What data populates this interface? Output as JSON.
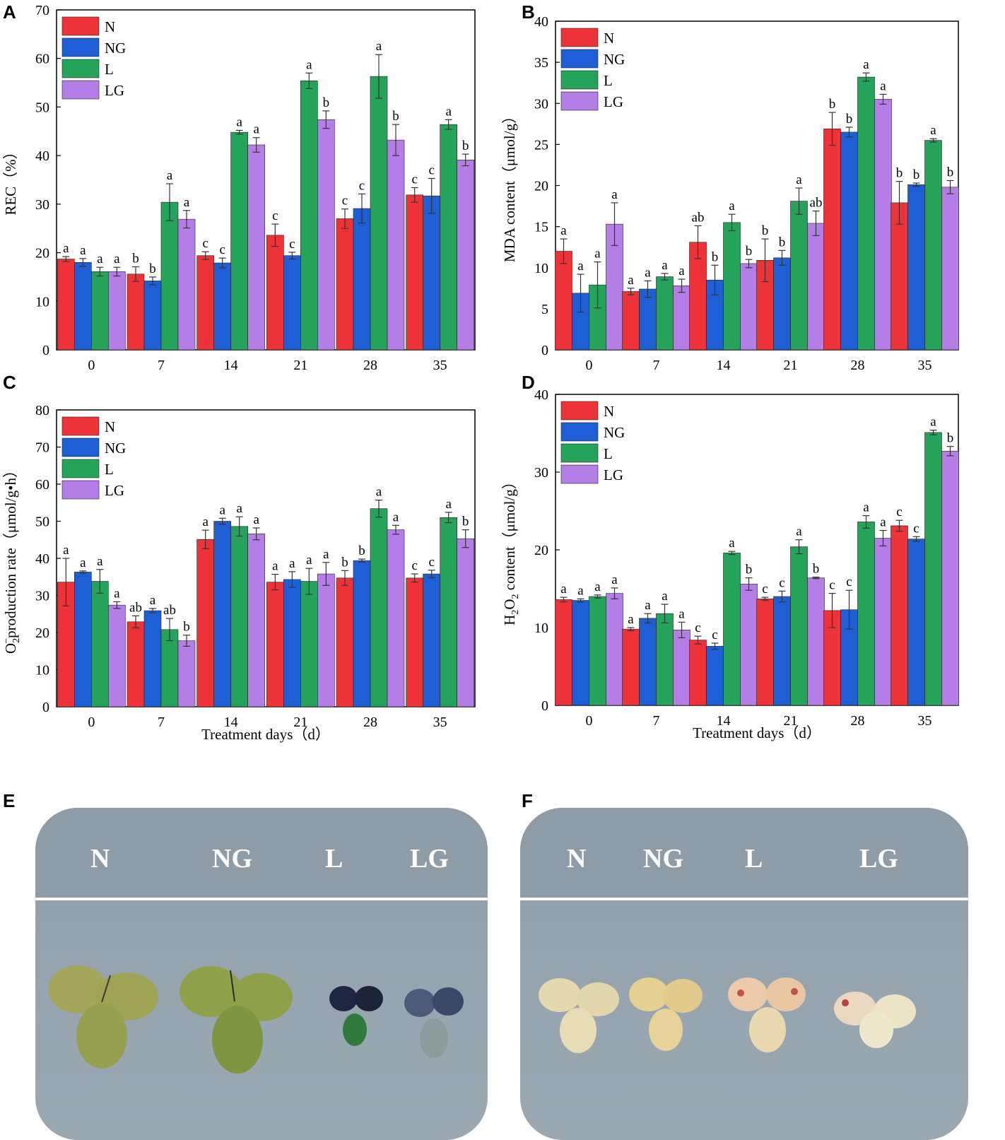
{
  "panels": {
    "A": "A",
    "B": "B",
    "C": "C",
    "D": "D",
    "E": "E",
    "F": "F"
  },
  "colors": {
    "N": "#ee3338",
    "NG": "#1f5fd6",
    "L": "#25a35a",
    "LG": "#b57ee6"
  },
  "chart_data": [
    {
      "id": "A",
      "type": "bar",
      "ylabel": "REC（%）",
      "xlabel": "",
      "ylim": [
        0,
        70
      ],
      "yticks": [
        0,
        10,
        20,
        30,
        40,
        50,
        60,
        70
      ],
      "categories": [
        "0",
        "7",
        "14",
        "21",
        "28",
        "35"
      ],
      "legend": {
        "position": "top-left",
        "entries": [
          "N",
          "NG",
          "L",
          "LG"
        ]
      },
      "series": [
        {
          "name": "N",
          "values": [
            18.7,
            15.6,
            19.4,
            23.6,
            27.0,
            31.9
          ],
          "errors": [
            0.5,
            1.5,
            0.8,
            2.3,
            2.0,
            1.5
          ],
          "labels": [
            "a",
            "b",
            "c",
            "c",
            "c",
            "c"
          ]
        },
        {
          "name": "NG",
          "values": [
            18.0,
            14.2,
            17.9,
            19.4,
            29.1,
            31.7
          ],
          "errors": [
            0.8,
            0.8,
            1.0,
            0.7,
            3.0,
            3.6
          ],
          "labels": [
            "a",
            "b",
            "c",
            "c",
            "c",
            "c"
          ]
        },
        {
          "name": "L",
          "values": [
            16.1,
            30.4,
            44.8,
            55.4,
            56.3,
            46.4
          ],
          "errors": [
            0.9,
            3.8,
            0.4,
            1.6,
            4.5,
            1.0
          ],
          "labels": [
            "a",
            "a",
            "a",
            "a",
            "a",
            "a"
          ]
        },
        {
          "name": "LG",
          "values": [
            16.1,
            26.9,
            42.2,
            47.4,
            43.2,
            39.1
          ],
          "errors": [
            0.9,
            1.8,
            1.5,
            1.8,
            3.2,
            1.2
          ],
          "labels": [
            "a",
            "a",
            "a",
            "b",
            "b",
            "b"
          ]
        }
      ]
    },
    {
      "id": "B",
      "type": "bar",
      "ylabel": "MDA content（μmol/g）",
      "xlabel": "",
      "ylim": [
        0,
        40
      ],
      "yticks": [
        0,
        5,
        10,
        15,
        20,
        25,
        30,
        35,
        40
      ],
      "categories": [
        "0",
        "7",
        "14",
        "21",
        "28",
        "35"
      ],
      "legend": {
        "position": "top-left",
        "entries": [
          "N",
          "NG",
          "L",
          "LG"
        ]
      },
      "series": [
        {
          "name": "N",
          "values": [
            12.0,
            7.1,
            13.1,
            10.9,
            26.9,
            17.9
          ],
          "errors": [
            1.5,
            0.4,
            2.0,
            2.6,
            2.0,
            2.6
          ],
          "labels": [
            "a",
            "a",
            "ab",
            "b",
            "b",
            "b"
          ]
        },
        {
          "name": "NG",
          "values": [
            6.9,
            7.4,
            8.5,
            11.2,
            26.5,
            20.1
          ],
          "errors": [
            2.3,
            1.0,
            1.8,
            0.9,
            0.6,
            0.2
          ],
          "labels": [
            "a",
            "a",
            "b",
            "b",
            "b",
            "b"
          ]
        },
        {
          "name": "L",
          "values": [
            7.9,
            8.9,
            15.5,
            18.1,
            33.2,
            25.5
          ],
          "errors": [
            2.8,
            0.4,
            1.0,
            1.6,
            0.5,
            0.2
          ],
          "labels": [
            "a",
            "a",
            "a",
            "a",
            "a",
            "a"
          ]
        },
        {
          "name": "LG",
          "values": [
            15.3,
            7.8,
            10.5,
            15.4,
            30.5,
            19.8
          ],
          "errors": [
            2.6,
            0.8,
            0.5,
            1.5,
            0.6,
            0.8
          ],
          "labels": [
            "a",
            "a",
            "b",
            "ab",
            "a",
            "b"
          ]
        }
      ]
    },
    {
      "id": "C",
      "type": "bar",
      "ylabel_main": "O",
      "ylabel_sub": "2",
      "ylabel_sup": "−",
      "ylabel_rest": "production rate（μmol/g•h）",
      "xlabel": "Treatment days（d）",
      "ylim": [
        0,
        80
      ],
      "yticks": [
        0,
        10,
        20,
        30,
        40,
        50,
        60,
        70,
        80
      ],
      "categories": [
        "0",
        "7",
        "14",
        "21",
        "28",
        "35"
      ],
      "legend": {
        "position": "top-left",
        "entries": [
          "N",
          "NG",
          "L",
          "LG"
        ]
      },
      "series": [
        {
          "name": "N",
          "values": [
            33.6,
            22.9,
            45.1,
            33.6,
            34.7,
            34.7
          ],
          "errors": [
            6.4,
            1.6,
            2.5,
            2.1,
            2.0,
            1.1
          ],
          "labels": [
            "a",
            "ab",
            "a",
            "a",
            "b",
            "c"
          ]
        },
        {
          "name": "NG",
          "values": [
            36.3,
            25.9,
            50.0,
            34.3,
            39.4,
            35.8
          ],
          "errors": [
            0.3,
            0.6,
            0.8,
            2.1,
            0.4,
            1.0
          ],
          "labels": [
            "a",
            "a",
            "a",
            "a",
            "b",
            "c"
          ]
        },
        {
          "name": "L",
          "values": [
            33.8,
            20.8,
            48.6,
            33.8,
            53.4,
            51.0
          ],
          "errors": [
            3.2,
            3.0,
            2.6,
            3.5,
            2.3,
            1.4
          ],
          "labels": [
            "a",
            "ab",
            "a",
            "a",
            "a",
            "a"
          ]
        },
        {
          "name": "LG",
          "values": [
            27.4,
            17.8,
            46.6,
            35.8,
            47.7,
            45.3
          ],
          "errors": [
            0.9,
            1.5,
            1.6,
            3.1,
            1.2,
            2.4
          ],
          "labels": [
            "a",
            "b",
            "a",
            "a",
            "a",
            "b"
          ]
        }
      ]
    },
    {
      "id": "D",
      "type": "bar",
      "ylabel_main": "H",
      "ylabel_sub": "2",
      "ylabel_mid": "O",
      "ylabel_sub2": "2",
      "ylabel_rest": " content（μmol/g）",
      "xlabel": "Treatment days（d）",
      "ylim": [
        0,
        40
      ],
      "yticks": [
        0,
        10,
        20,
        30,
        40
      ],
      "categories": [
        "0",
        "7",
        "14",
        "21",
        "28",
        "35"
      ],
      "legend": {
        "position": "top-left",
        "entries": [
          "N",
          "NG",
          "L",
          "LG"
        ]
      },
      "series": [
        {
          "name": "N",
          "values": [
            13.6,
            9.8,
            8.4,
            13.7,
            12.2,
            23.1
          ],
          "errors": [
            0.3,
            0.2,
            0.5,
            0.2,
            2.2,
            0.7
          ],
          "labels": [
            "a",
            "a",
            "c",
            "c",
            "c",
            "c"
          ]
        },
        {
          "name": "NG",
          "values": [
            13.5,
            11.2,
            7.6,
            14.0,
            12.3,
            21.4
          ],
          "errors": [
            0.2,
            0.6,
            0.4,
            0.7,
            2.5,
            0.3
          ],
          "labels": [
            "a",
            "a",
            "c",
            "c",
            "c",
            "c"
          ]
        },
        {
          "name": "L",
          "values": [
            14.0,
            11.8,
            19.6,
            20.4,
            23.6,
            35.1
          ],
          "errors": [
            0.2,
            1.2,
            0.2,
            0.9,
            0.8,
            0.3
          ],
          "labels": [
            "a",
            "a",
            "a",
            "a",
            "a",
            "a"
          ]
        },
        {
          "name": "LG",
          "values": [
            14.4,
            9.7,
            15.6,
            16.4,
            21.5,
            32.7
          ],
          "errors": [
            0.7,
            1.0,
            0.8,
            0.1,
            1.0,
            0.6
          ],
          "labels": [
            "a",
            "a",
            "b",
            "b",
            "a",
            "b"
          ]
        }
      ]
    }
  ],
  "photoE": {
    "labels": [
      "N",
      "NG",
      "L",
      "LG"
    ]
  },
  "photoF": {
    "labels": [
      "N",
      "NG",
      "L",
      "LG"
    ]
  }
}
